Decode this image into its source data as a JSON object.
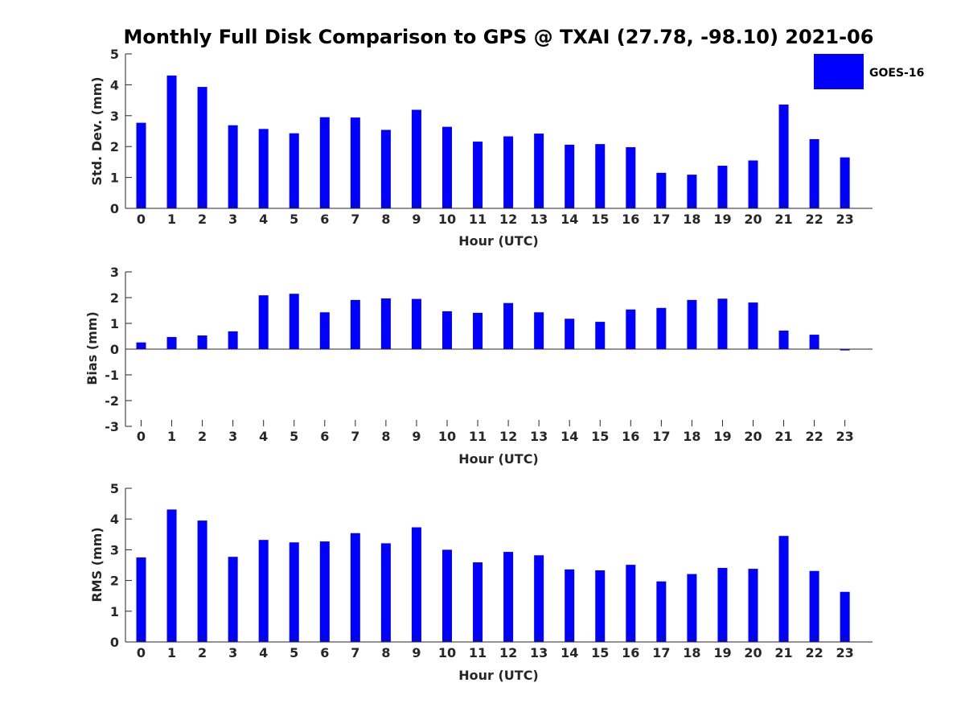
{
  "title": "Monthly Full Disk Comparison to GPS @ TXAI (27.78, -98.10) 2021-06",
  "legend": {
    "label": "GOES-16",
    "color": "#0000ff"
  },
  "chart_data": [
    {
      "type": "bar",
      "xlabel": "Hour (UTC)",
      "ylabel": "Std. Dev. (mm)",
      "ylim": [
        0,
        5
      ],
      "yticks": [
        "0",
        "1",
        "2",
        "3",
        "4",
        "5"
      ],
      "categories": [
        "0",
        "1",
        "2",
        "3",
        "4",
        "5",
        "6",
        "7",
        "8",
        "9",
        "10",
        "11",
        "12",
        "13",
        "14",
        "15",
        "16",
        "17",
        "18",
        "19",
        "20",
        "21",
        "22",
        "23"
      ],
      "series": [
        {
          "name": "GOES-16",
          "color": "#0000ff",
          "values": [
            2.77,
            4.3,
            3.93,
            2.69,
            2.57,
            2.43,
            2.95,
            2.94,
            2.54,
            3.19,
            2.64,
            2.16,
            2.33,
            2.42,
            2.06,
            2.08,
            1.98,
            1.15,
            1.09,
            1.38,
            1.55,
            3.36,
            2.24,
            1.65
          ]
        }
      ]
    },
    {
      "type": "bar",
      "xlabel": "Hour (UTC)",
      "ylabel": "Bias (mm)",
      "ylim": [
        -3,
        3
      ],
      "yticks": [
        "-3",
        "-2",
        "-1",
        "0",
        "1",
        "2",
        "3"
      ],
      "categories": [
        "0",
        "1",
        "2",
        "3",
        "4",
        "5",
        "6",
        "7",
        "8",
        "9",
        "10",
        "11",
        "12",
        "13",
        "14",
        "15",
        "16",
        "17",
        "18",
        "19",
        "20",
        "21",
        "22",
        "23"
      ],
      "series": [
        {
          "name": "GOES-16",
          "color": "#0000ff",
          "values": [
            0.26,
            0.47,
            0.53,
            0.69,
            2.09,
            2.15,
            1.43,
            1.91,
            1.97,
            1.95,
            1.47,
            1.41,
            1.79,
            1.43,
            1.18,
            1.06,
            1.54,
            1.6,
            1.91,
            1.96,
            1.81,
            0.72,
            0.56,
            -0.05
          ]
        }
      ]
    },
    {
      "type": "bar",
      "xlabel": "Hour (UTC)",
      "ylabel": "RMS (mm)",
      "ylim": [
        0,
        5
      ],
      "yticks": [
        "0",
        "1",
        "2",
        "3",
        "4",
        "5"
      ],
      "categories": [
        "0",
        "1",
        "2",
        "3",
        "4",
        "5",
        "6",
        "7",
        "8",
        "9",
        "10",
        "11",
        "12",
        "13",
        "14",
        "15",
        "16",
        "17",
        "18",
        "19",
        "20",
        "21",
        "22",
        "23"
      ],
      "series": [
        {
          "name": "GOES-16",
          "color": "#0000ff",
          "values": [
            2.75,
            4.31,
            3.95,
            2.77,
            3.32,
            3.24,
            3.27,
            3.54,
            3.21,
            3.73,
            3.0,
            2.59,
            2.93,
            2.82,
            2.36,
            2.33,
            2.51,
            1.97,
            2.21,
            2.41,
            2.38,
            3.45,
            2.31,
            1.63
          ]
        }
      ]
    }
  ]
}
